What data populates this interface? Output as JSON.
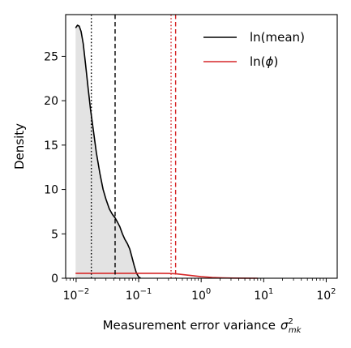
{
  "chart_data": {
    "type": "area",
    "xlabel": "Measurement error variance",
    "xlabel_symbol": "σ",
    "xlabel_sup": "2",
    "xlabel_sub": "mk",
    "ylabel": "Density",
    "xscale": "log",
    "xlim": [
      0.0068,
      150
    ],
    "ylim": [
      0,
      29.7
    ],
    "yticks": [
      0,
      5,
      10,
      15,
      20,
      25
    ],
    "xticks": [
      {
        "value": 0.01,
        "base": "10",
        "exp": "−2"
      },
      {
        "value": 0.1,
        "base": "10",
        "exp": "−1"
      },
      {
        "value": 1,
        "base": "10",
        "exp": "0"
      },
      {
        "value": 10,
        "base": "10",
        "exp": "1"
      },
      {
        "value": 100,
        "base": "10",
        "exp": "2"
      }
    ],
    "legend_position": "top-right",
    "series": [
      {
        "name": "ln(mean)",
        "label_text": "ln(mean)",
        "color": "#000000",
        "filled": true,
        "fill_color": "#e3e3e3",
        "x": [
          0.0098,
          0.0105,
          0.0112,
          0.012,
          0.013,
          0.0142,
          0.0155,
          0.017,
          0.019,
          0.021,
          0.024,
          0.027,
          0.03,
          0.034,
          0.038,
          0.042,
          0.046,
          0.05,
          0.055,
          0.06,
          0.066,
          0.072,
          0.078,
          0.085,
          0.092,
          0.1,
          0.108
        ],
        "y": [
          28.2,
          28.5,
          28.4,
          27.8,
          26.4,
          24.0,
          21.5,
          19.0,
          16.5,
          14.2,
          11.8,
          10.0,
          8.9,
          7.8,
          7.2,
          6.8,
          6.3,
          5.8,
          5.0,
          4.4,
          3.9,
          3.3,
          2.4,
          1.4,
          0.6,
          0.15,
          0.0
        ]
      },
      {
        "name": "ln(φ)",
        "label_prefix": "ln(",
        "label_symbol": "ϕ",
        "label_suffix": ")",
        "color": "#d62728",
        "filled": false,
        "x": [
          0.0098,
          0.02,
          0.05,
          0.1,
          0.2,
          0.3,
          0.4,
          0.5,
          0.7,
          1.0,
          1.5,
          2.2,
          3.2,
          5,
          8
        ],
        "y": [
          0.55,
          0.55,
          0.55,
          0.55,
          0.55,
          0.54,
          0.5,
          0.42,
          0.3,
          0.18,
          0.09,
          0.04,
          0.015,
          0.005,
          0.0
        ]
      }
    ],
    "vlines": [
      {
        "series": "ln(mean)",
        "x": 0.0175,
        "style": "dotted",
        "color": "#000000"
      },
      {
        "series": "ln(mean)",
        "x": 0.042,
        "style": "dashed",
        "color": "#000000"
      },
      {
        "series": "ln(φ)",
        "x": 0.33,
        "style": "dotted",
        "color": "#d62728"
      },
      {
        "series": "ln(φ)",
        "x": 0.39,
        "style": "dashed",
        "color": "#d62728"
      }
    ]
  }
}
